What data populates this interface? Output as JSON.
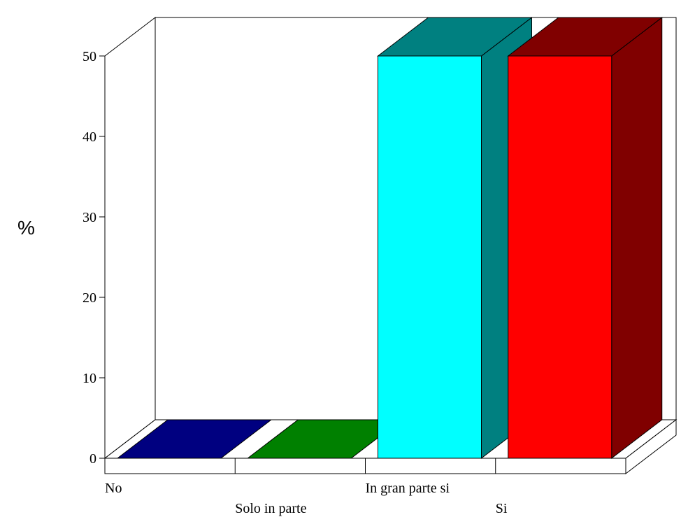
{
  "chart_data": {
    "type": "bar",
    "title": "",
    "xlabel": "",
    "ylabel": "%",
    "ylim": [
      0,
      50
    ],
    "yticks": [
      "0",
      "10",
      "20",
      "30",
      "40",
      "50"
    ],
    "categories": [
      "No",
      "Solo in parte",
      "In gran parte si",
      "Si"
    ],
    "values": [
      0,
      0,
      50,
      50
    ],
    "grid": false,
    "style": "3d",
    "colors": [
      {
        "front": "#000080",
        "side": "#000050",
        "top": "#000080"
      },
      {
        "front": "#008000",
        "side": "#005000",
        "top": "#008000"
      },
      {
        "front": "#00ffff",
        "side": "#008080",
        "top": "#008080"
      },
      {
        "front": "#ff0000",
        "side": "#800000",
        "top": "#800000"
      }
    ]
  }
}
